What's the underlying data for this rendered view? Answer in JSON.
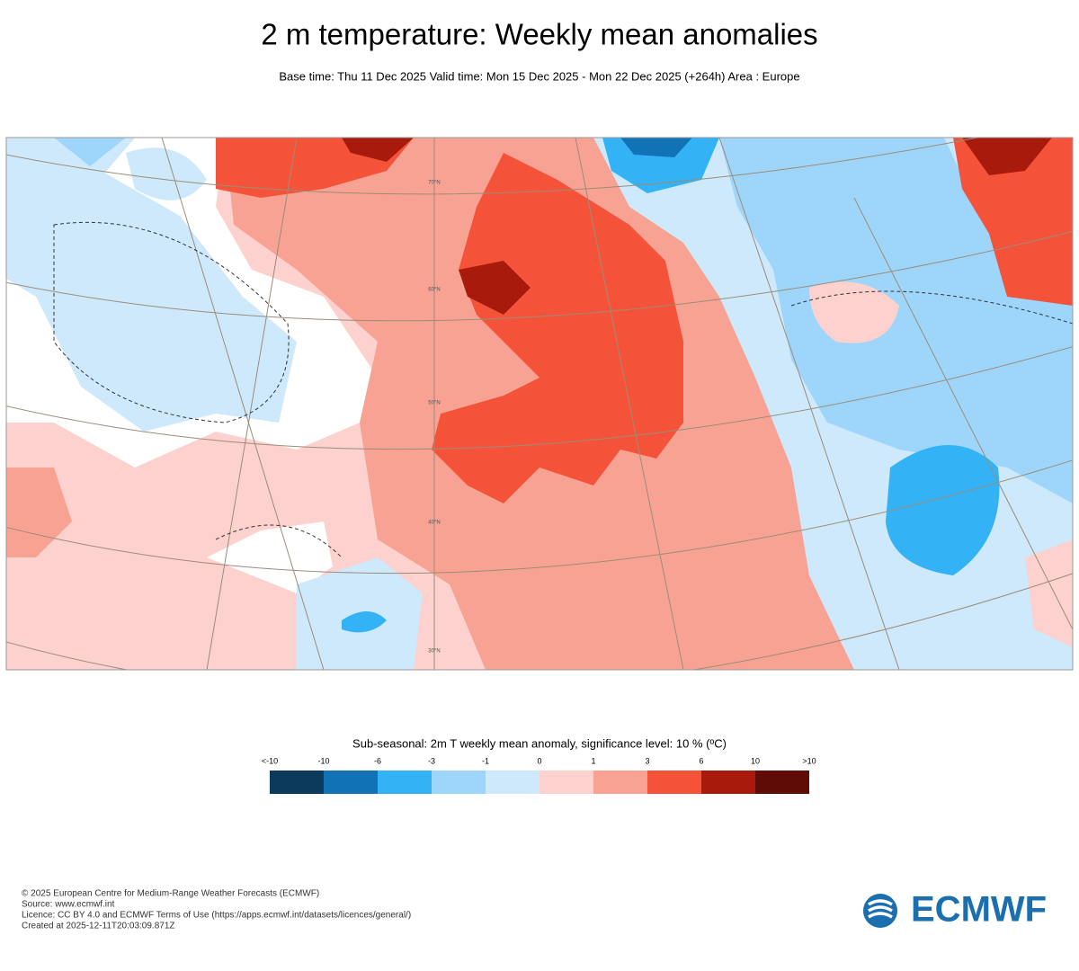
{
  "title": "2 m temperature: Weekly mean anomalies",
  "subtitle": "Base time: Thu 11 Dec 2025 Valid time: Mon 15 Dec 2025 - Mon 22 Dec 2025 (+264h) Area : Europe",
  "map": {
    "latitude_labels": [
      "70°N",
      "60°N",
      "50°N",
      "40°N",
      "30°N"
    ]
  },
  "legend": {
    "title": "Sub-seasonal: 2m T weekly mean anomaly, significance level: 10 % (ºC)",
    "labels": [
      "<-10",
      "-10",
      "-6",
      "-3",
      "-1",
      "0",
      "1",
      "3",
      "6",
      "10",
      ">10"
    ],
    "colors": [
      "#0b3a5c",
      "#1173b5",
      "#33b2f6",
      "#9ed6fb",
      "#cde9fb",
      "#fdd1cd",
      "#f8a293",
      "#f4533a",
      "#a81b0c",
      "#5e0c05"
    ]
  },
  "footer": {
    "lines": [
      "© 2025 European Centre for Medium-Range Weather Forecasts (ECMWF)",
      "Source: www.ecmwf.int",
      "Licence: CC BY 4.0 and ECMWF Terms of Use (https://apps.ecmwf.int/datasets/licences/general/)",
      "Created at 2025-12-11T20:03:09.871Z"
    ],
    "logo": "ECMWF"
  }
}
